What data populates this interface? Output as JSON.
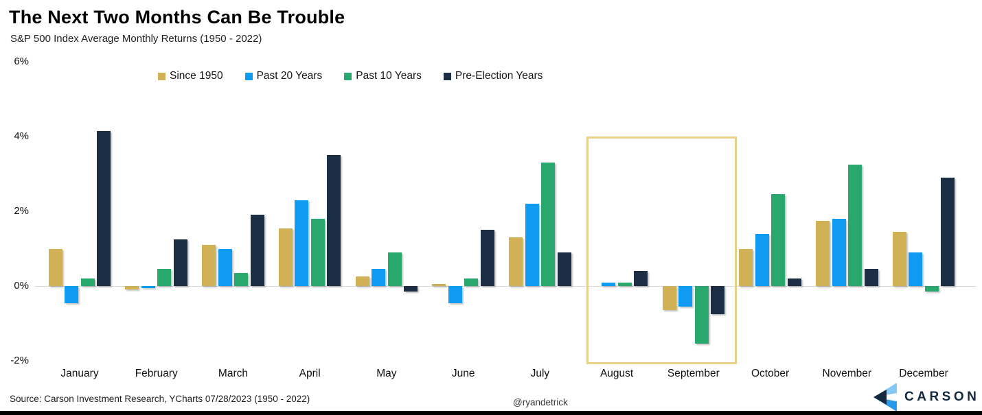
{
  "header": {
    "title": "The Next Two Months Can Be Trouble",
    "subtitle": "S&P 500 Index Average Monthly Returns (1950 - 2022)"
  },
  "chart_data": {
    "type": "bar",
    "title": "The Next Two Months Can Be Trouble",
    "subtitle": "S&P 500 Index Average Monthly Returns (1950 - 2022)",
    "categories": [
      "January",
      "February",
      "March",
      "April",
      "May",
      "June",
      "July",
      "August",
      "September",
      "October",
      "November",
      "December"
    ],
    "series": [
      {
        "name": "Since 1950",
        "color": "#d1b156",
        "values": [
          1.0,
          -0.1,
          1.1,
          1.55,
          0.25,
          0.05,
          1.3,
          0.0,
          -0.65,
          1.0,
          1.75,
          1.45
        ]
      },
      {
        "name": "Past 20 Years",
        "color": "#0f9bf2",
        "values": [
          -0.45,
          -0.05,
          1.0,
          2.3,
          0.45,
          -0.45,
          2.2,
          0.1,
          -0.55,
          1.4,
          1.8,
          0.9
        ]
      },
      {
        "name": "Past 10 Years",
        "color": "#29a86e",
        "values": [
          0.2,
          0.45,
          0.35,
          1.8,
          0.9,
          0.2,
          3.3,
          0.1,
          -1.55,
          2.45,
          3.25,
          -0.15
        ]
      },
      {
        "name": "Pre-Election Years",
        "color": "#1b2e44",
        "values": [
          4.15,
          1.25,
          1.9,
          3.5,
          -0.15,
          1.5,
          0.9,
          0.4,
          -0.75,
          0.2,
          0.45,
          2.9
        ]
      }
    ],
    "ylabel": "",
    "xlabel": "",
    "y_ticks": [
      {
        "value": 6,
        "label": "6%"
      },
      {
        "value": 4,
        "label": "4%"
      },
      {
        "value": 2,
        "label": "2%"
      },
      {
        "value": 0,
        "label": "0%"
      },
      {
        "value": -2,
        "label": "-2%"
      }
    ],
    "ylim": [
      -2.2,
      6
    ],
    "grid": "zero-baseline-only",
    "legend_position": "top",
    "highlight": {
      "months": [
        "August",
        "September"
      ],
      "border_color": "#e8d28a"
    }
  },
  "footer": {
    "source": "Source: Carson Investment Research, YCharts 07/28/2023 (1950 - 2022)",
    "handle": "@ryandetrick",
    "logo_text": "CARSON"
  },
  "colors": {
    "since_1950": "#d1b156",
    "past_20_years": "#0f9bf2",
    "past_10_years": "#29a86e",
    "pre_election_years": "#1b2e44",
    "highlight_border": "#e8d28a",
    "gridline": "#d9d9d9",
    "logo_navy": "#14293e",
    "logo_light_blue": "#85c9f2",
    "logo_mid_blue": "#2699ea"
  }
}
